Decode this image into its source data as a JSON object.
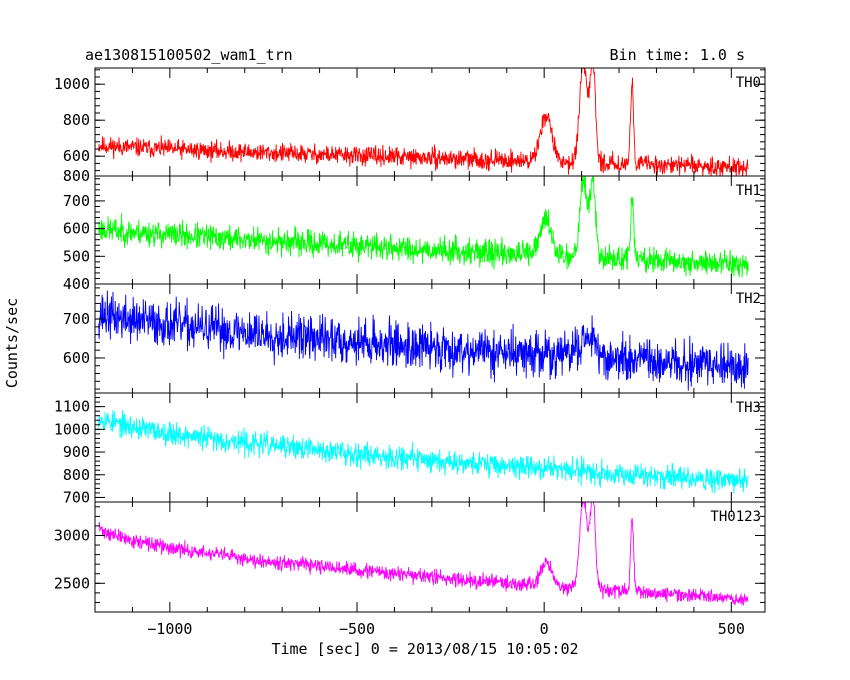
{
  "header": {
    "left_title": "ae130815100502_wam1_trn",
    "right_title": "Bin time: 1.0 s"
  },
  "chart_data": {
    "type": "line",
    "title": "ae130815100502_wam1_trn",
    "subtitle": "Bin time: 1.0 s",
    "xlabel": "Time [sec] 0 = 2013/08/15 10:05:02",
    "ylabel": "Counts/sec",
    "xlim": [
      -1200,
      590
    ],
    "xticks": [
      -1000,
      -500,
      0,
      500
    ],
    "grid": false,
    "panels": [
      {
        "name": "TH0",
        "color": "#ff0000",
        "ylim": [
          490,
          1090
        ],
        "yticks": [
          600,
          800,
          1000
        ],
        "ytick_labels": [
          "600",
          "800",
          "1000"
        ],
        "bottom_label": "800",
        "baseline_start": 660,
        "baseline_end": 540,
        "curve_exp": 0.8,
        "noise_amp": 45,
        "seed": 11,
        "bursts": [
          {
            "t": 5,
            "amp": 260,
            "width": 15
          },
          {
            "t": 105,
            "amp": 550,
            "width": 10
          },
          {
            "t": 130,
            "amp": 560,
            "width": 7
          },
          {
            "t": 235,
            "amp": 450,
            "width": 4
          }
        ]
      },
      {
        "name": "TH1",
        "color": "#00ff00",
        "ylim": [
          400,
          790
        ],
        "yticks": [
          500,
          600,
          700
        ],
        "ytick_labels": [
          "500",
          "600",
          "700"
        ],
        "bottom_label": "400",
        "baseline_start": 600,
        "baseline_end": 470,
        "curve_exp": 0.8,
        "noise_amp": 40,
        "seed": 23,
        "bursts": [
          {
            "t": 5,
            "amp": 130,
            "width": 15
          },
          {
            "t": 105,
            "amp": 280,
            "width": 10
          },
          {
            "t": 130,
            "amp": 280,
            "width": 7
          },
          {
            "t": 235,
            "amp": 220,
            "width": 4
          }
        ]
      },
      {
        "name": "TH2",
        "color": "#0000ff",
        "ylim": [
          510,
          790
        ],
        "yticks": [
          600,
          700
        ],
        "ytick_labels": [
          "600",
          "700"
        ],
        "bottom_label": "",
        "baseline_start": 715,
        "baseline_end": 575,
        "curve_exp": 0.7,
        "noise_amp": 50,
        "seed": 37,
        "bursts": [
          {
            "t": 110,
            "amp": 40,
            "width": 25
          },
          {
            "t": 130,
            "amp": 40,
            "width": 8
          }
        ]
      },
      {
        "name": "TH3",
        "color": "#00ffff",
        "ylim": [
          680,
          1160
        ],
        "yticks": [
          700,
          800,
          900,
          1000,
          1100
        ],
        "ytick_labels": [
          "700",
          "800",
          "900",
          "1000",
          "1100"
        ],
        "bottom_label": "",
        "baseline_start": 1060,
        "baseline_end": 770,
        "curve_exp": 0.6,
        "noise_amp": 45,
        "seed": 53,
        "bursts": []
      },
      {
        "name": "TH0123",
        "color": "#ff00ff",
        "ylim": [
          2200,
          3350
        ],
        "yticks": [
          2500,
          3000
        ],
        "ytick_labels": [
          "2500",
          "3000"
        ],
        "bottom_label": "",
        "baseline_start": 3100,
        "baseline_end": 2330,
        "curve_exp": 0.55,
        "noise_amp": 65,
        "seed": 71,
        "bursts": [
          {
            "t": 5,
            "amp": 250,
            "width": 15
          },
          {
            "t": 105,
            "amp": 950,
            "width": 10
          },
          {
            "t": 130,
            "amp": 950,
            "width": 7
          },
          {
            "t": 235,
            "amp": 800,
            "width": 4
          }
        ]
      }
    ]
  }
}
